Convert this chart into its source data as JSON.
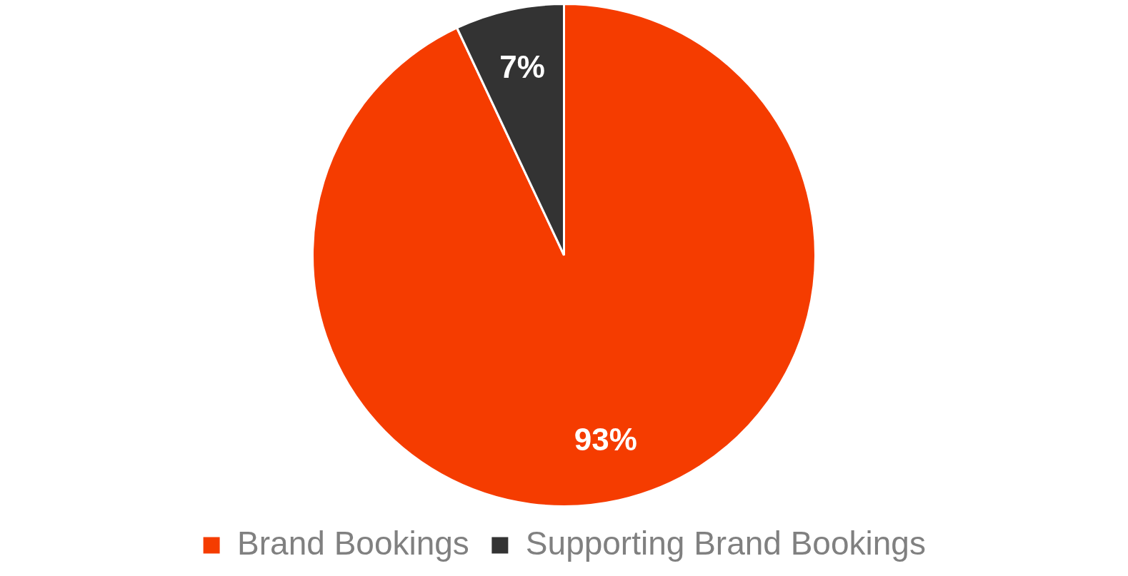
{
  "chart_data": {
    "type": "pie",
    "categories": [
      "Brand Bookings",
      "Supporting Brand Bookings"
    ],
    "values": [
      93,
      7
    ],
    "colors": [
      "#f53c00",
      "#333333"
    ],
    "value_labels": [
      "93%",
      "7%"
    ],
    "legend": "bottom"
  }
}
